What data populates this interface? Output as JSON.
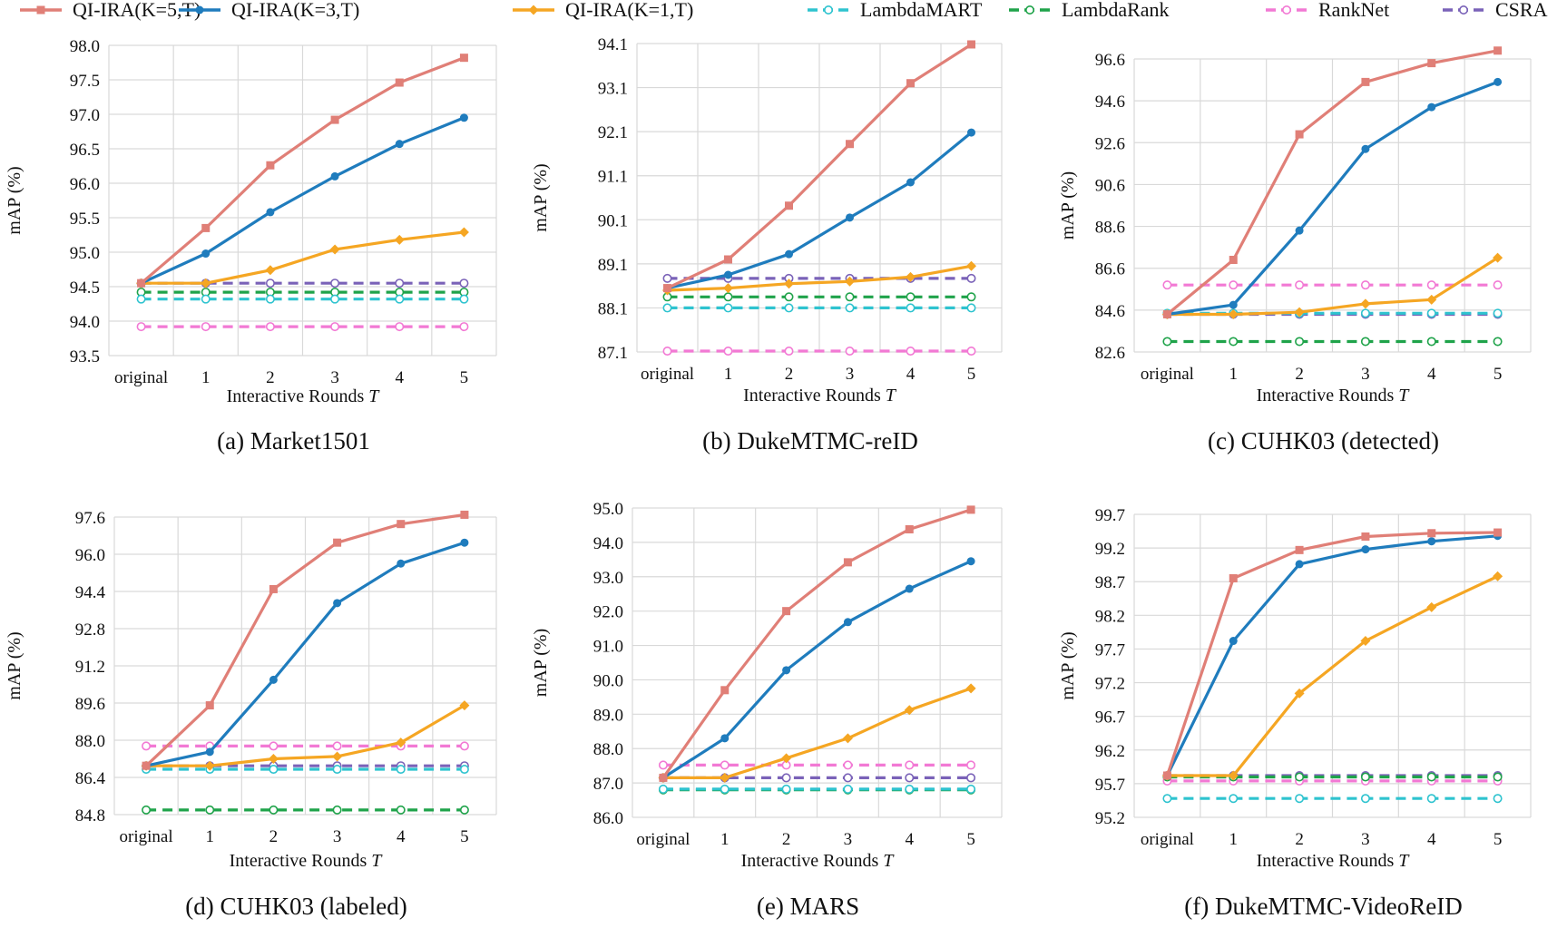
{
  "legend": [
    {
      "name": "QI-IRA(K=5,T)",
      "color": "#e07f77",
      "marker": "square",
      "dash": false
    },
    {
      "name": "QI-IRA(K=3,T)",
      "color": "#1f7cbd",
      "marker": "circle",
      "dash": false
    },
    {
      "name": "QI-IRA(K=1,T)",
      "color": "#f5a623",
      "marker": "diamond",
      "dash": false
    },
    {
      "name": "LambdaMART",
      "color": "#2ec3cf",
      "marker": "open-circle",
      "dash": true
    },
    {
      "name": "LambdaRank",
      "color": "#1fa34a",
      "marker": "open-circle",
      "dash": true
    },
    {
      "name": "RankNet",
      "color": "#f279d4",
      "marker": "open-circle",
      "dash": true
    },
    {
      "name": "CSRA",
      "color": "#7a62b8",
      "marker": "open-circle",
      "dash": true
    }
  ],
  "chart_data": [
    {
      "type": "line",
      "title": "(a) Market1501",
      "xlabel": "Interactive Rounds ",
      "xlabel_italic": "T",
      "ylabel": "mAP (%)",
      "categories": [
        "original",
        "1",
        "2",
        "3",
        "4",
        "5"
      ],
      "yticks": [
        "93.5",
        "94.0",
        "94.5",
        "95.0",
        "95.5",
        "96.0",
        "96.5",
        "97.0",
        "97.5",
        "98.0"
      ],
      "ylim": [
        93.5,
        98.0
      ],
      "series": [
        {
          "name": "QI-IRA(K=5,T)",
          "values": [
            94.55,
            95.35,
            96.26,
            96.92,
            97.46,
            97.82
          ]
        },
        {
          "name": "QI-IRA(K=3,T)",
          "values": [
            94.55,
            94.98,
            95.58,
            96.1,
            96.57,
            96.95
          ]
        },
        {
          "name": "QI-IRA(K=1,T)",
          "values": [
            94.55,
            94.55,
            94.74,
            95.04,
            95.18,
            95.29
          ]
        },
        {
          "name": "LambdaMART",
          "values": [
            94.32,
            94.32,
            94.32,
            94.32,
            94.32,
            94.32
          ]
        },
        {
          "name": "LambdaRank",
          "values": [
            94.42,
            94.42,
            94.42,
            94.42,
            94.42,
            94.42
          ]
        },
        {
          "name": "RankNet",
          "values": [
            93.92,
            93.92,
            93.92,
            93.92,
            93.92,
            93.92
          ]
        },
        {
          "name": "CSRA",
          "values": [
            94.55,
            94.55,
            94.55,
            94.55,
            94.55,
            94.55
          ]
        }
      ]
    },
    {
      "type": "line",
      "title": "(b) DukeMTMC-reID",
      "xlabel": "Interactive Rounds ",
      "xlabel_italic": "T",
      "ylabel": "mAP (%)",
      "categories": [
        "original",
        "1",
        "2",
        "3",
        "4",
        "5"
      ],
      "yticks": [
        "87.1",
        "88.1",
        "89.1",
        "90.1",
        "91.1",
        "92.1",
        "93.1",
        "94.1"
      ],
      "ylim": [
        87.1,
        94.1
      ],
      "series": [
        {
          "name": "QI-IRA(K=5,T)",
          "values": [
            88.55,
            89.2,
            90.42,
            91.82,
            93.2,
            94.08
          ]
        },
        {
          "name": "QI-IRA(K=3,T)",
          "values": [
            88.55,
            88.85,
            89.32,
            90.15,
            90.95,
            92.08
          ]
        },
        {
          "name": "QI-IRA(K=1,T)",
          "values": [
            88.5,
            88.55,
            88.65,
            88.7,
            88.8,
            89.05
          ]
        },
        {
          "name": "LambdaMART",
          "values": [
            88.1,
            88.1,
            88.1,
            88.1,
            88.1,
            88.1
          ]
        },
        {
          "name": "LambdaRank",
          "values": [
            88.35,
            88.35,
            88.35,
            88.35,
            88.35,
            88.35
          ]
        },
        {
          "name": "RankNet",
          "values": [
            87.12,
            87.12,
            87.12,
            87.12,
            87.12,
            87.12
          ]
        },
        {
          "name": "CSRA",
          "values": [
            88.77,
            88.77,
            88.77,
            88.77,
            88.77,
            88.77
          ]
        }
      ]
    },
    {
      "type": "line",
      "title": "(c) CUHK03 (detected)",
      "xlabel": "Interactive Rounds ",
      "xlabel_italic": "T",
      "ylabel": "mAP (%)",
      "categories": [
        "original",
        "1",
        "2",
        "3",
        "4",
        "5"
      ],
      "yticks": [
        "82.6",
        "84.6",
        "86.6",
        "88.6",
        "90.6",
        "92.6",
        "94.6",
        "96.6"
      ],
      "ylim": [
        82.6,
        96.6
      ],
      "series": [
        {
          "name": "QI-IRA(K=5,T)",
          "values": [
            84.4,
            87.0,
            93.0,
            95.5,
            96.4,
            97.0
          ]
        },
        {
          "name": "QI-IRA(K=3,T)",
          "values": [
            84.4,
            84.85,
            88.4,
            92.3,
            94.3,
            95.5
          ]
        },
        {
          "name": "QI-IRA(K=1,T)",
          "values": [
            84.4,
            84.4,
            84.5,
            84.9,
            85.1,
            87.1
          ]
        },
        {
          "name": "LambdaMART",
          "values": [
            84.45,
            84.45,
            84.45,
            84.45,
            84.45,
            84.45
          ]
        },
        {
          "name": "LambdaRank",
          "values": [
            83.1,
            83.1,
            83.1,
            83.1,
            83.1,
            83.1
          ]
        },
        {
          "name": "RankNet",
          "values": [
            85.8,
            85.8,
            85.8,
            85.8,
            85.8,
            85.8
          ]
        },
        {
          "name": "CSRA",
          "values": [
            84.4,
            84.4,
            84.4,
            84.4,
            84.4,
            84.4
          ]
        }
      ]
    },
    {
      "type": "line",
      "title": "(d) CUHK03 (labeled)",
      "xlabel": "Interactive Rounds ",
      "xlabel_italic": "T",
      "ylabel": "mAP (%)",
      "categories": [
        "original",
        "1",
        "2",
        "3",
        "4",
        "5"
      ],
      "yticks": [
        "84.8",
        "86.4",
        "88.0",
        "89.6",
        "91.2",
        "92.8",
        "94.4",
        "96.0",
        "97.6"
      ],
      "ylim": [
        84.8,
        97.6
      ],
      "series": [
        {
          "name": "QI-IRA(K=5,T)",
          "values": [
            86.9,
            89.5,
            94.5,
            96.5,
            97.3,
            97.7
          ]
        },
        {
          "name": "QI-IRA(K=3,T)",
          "values": [
            86.9,
            87.5,
            90.6,
            93.9,
            95.6,
            96.5
          ]
        },
        {
          "name": "QI-IRA(K=1,T)",
          "values": [
            86.9,
            86.9,
            87.2,
            87.3,
            87.9,
            89.5
          ]
        },
        {
          "name": "LambdaMART",
          "values": [
            86.75,
            86.75,
            86.75,
            86.75,
            86.75,
            86.75
          ]
        },
        {
          "name": "LambdaRank",
          "values": [
            85.0,
            85.0,
            85.0,
            85.0,
            85.0,
            85.0
          ]
        },
        {
          "name": "RankNet",
          "values": [
            87.75,
            87.75,
            87.75,
            87.75,
            87.75,
            87.75
          ]
        },
        {
          "name": "CSRA",
          "values": [
            86.9,
            86.9,
            86.9,
            86.9,
            86.9,
            86.9
          ]
        }
      ]
    },
    {
      "type": "line",
      "title": "(e) MARS",
      "xlabel": "Interactive Rounds ",
      "xlabel_italic": "T",
      "ylabel": "mAP (%)",
      "categories": [
        "original",
        "1",
        "2",
        "3",
        "4",
        "5"
      ],
      "yticks": [
        "86.0",
        "87.0",
        "88.0",
        "89.0",
        "90.0",
        "91.0",
        "92.0",
        "93.0",
        "94.0",
        "95.0"
      ],
      "ylim": [
        86.0,
        95.0
      ],
      "series": [
        {
          "name": "QI-IRA(K=5,T)",
          "values": [
            87.15,
            89.7,
            92.0,
            93.42,
            94.38,
            94.95
          ]
        },
        {
          "name": "QI-IRA(K=3,T)",
          "values": [
            87.15,
            88.3,
            90.28,
            91.68,
            92.65,
            93.45
          ]
        },
        {
          "name": "QI-IRA(K=1,T)",
          "values": [
            87.15,
            87.15,
            87.72,
            88.3,
            89.12,
            89.75
          ]
        },
        {
          "name": "LambdaMART",
          "values": [
            86.82,
            86.82,
            86.82,
            86.82,
            86.82,
            86.82
          ]
        },
        {
          "name": "LambdaRank",
          "values": [
            86.8,
            86.8,
            86.8,
            86.8,
            86.8,
            86.8
          ]
        },
        {
          "name": "RankNet",
          "values": [
            87.52,
            87.52,
            87.52,
            87.52,
            87.52,
            87.52
          ]
        },
        {
          "name": "CSRA",
          "values": [
            87.15,
            87.15,
            87.15,
            87.15,
            87.15,
            87.15
          ]
        }
      ]
    },
    {
      "type": "line",
      "title": "(f) DukeMTMC-VideoReID",
      "xlabel": "Interactive Rounds ",
      "xlabel_italic": "T",
      "ylabel": "mAP (%)",
      "categories": [
        "original",
        "1",
        "2",
        "3",
        "4",
        "5"
      ],
      "yticks": [
        "95.2",
        "95.7",
        "96.2",
        "96.7",
        "97.2",
        "97.7",
        "98.2",
        "98.7",
        "99.2",
        "99.7"
      ],
      "ylim": [
        95.2,
        99.7
      ],
      "series": [
        {
          "name": "QI-IRA(K=5,T)",
          "values": [
            95.82,
            98.75,
            99.17,
            99.37,
            99.42,
            99.43
          ]
        },
        {
          "name": "QI-IRA(K=3,T)",
          "values": [
            95.82,
            97.82,
            98.96,
            99.18,
            99.3,
            99.38
          ]
        },
        {
          "name": "QI-IRA(K=1,T)",
          "values": [
            95.82,
            95.82,
            97.04,
            97.82,
            98.32,
            98.78
          ]
        },
        {
          "name": "LambdaMART",
          "values": [
            95.48,
            95.48,
            95.48,
            95.48,
            95.48,
            95.48
          ]
        },
        {
          "name": "LambdaRank",
          "values": [
            95.8,
            95.8,
            95.8,
            95.8,
            95.8,
            95.8
          ]
        },
        {
          "name": "RankNet",
          "values": [
            95.74,
            95.74,
            95.74,
            95.74,
            95.74,
            95.74
          ]
        },
        {
          "name": "CSRA",
          "values": [
            95.82,
            95.82,
            95.82,
            95.82,
            95.82,
            95.82
          ]
        }
      ]
    }
  ]
}
